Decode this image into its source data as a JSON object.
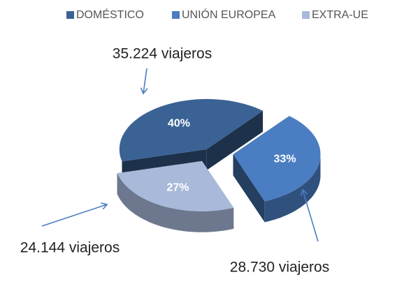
{
  "chart_data": {
    "type": "pie",
    "categories": [
      "DOMÉSTICO",
      "UNIÓN EUROPEA",
      "EXTRA-UE"
    ],
    "values": [
      40,
      33,
      27
    ],
    "value_labels": [
      "40%",
      "33%",
      "27%"
    ],
    "colors": [
      "#3b6294",
      "#4a7dc2",
      "#a8b9da"
    ],
    "legend": "top",
    "annotations": [
      "35.224 viajeros",
      "28.730 viajeros",
      "24.144 viajeros"
    ]
  }
}
